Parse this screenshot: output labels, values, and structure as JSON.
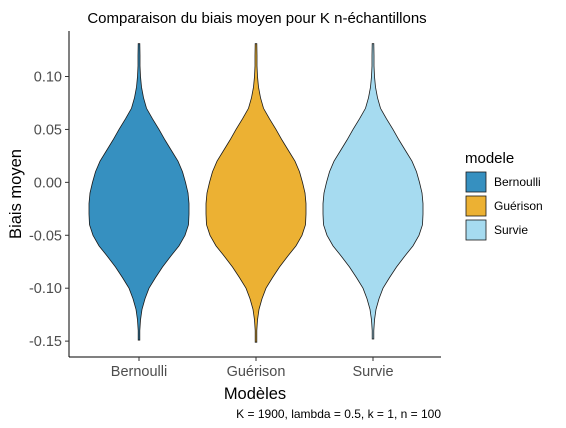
{
  "chart_data": {
    "type": "violin",
    "title": "Comparaison du biais moyen pour K n-échantillons",
    "xlabel": "Modèles",
    "ylabel": "Biais moyen",
    "caption": "K = 1900, lambda = 0.5, k = 1, n = 100",
    "ylim": [
      -0.165,
      0.143
    ],
    "yticks": [
      "-0.15",
      "-0.10",
      "-0.05",
      "0.00",
      "0.05",
      "0.10"
    ],
    "yticks_values": [
      -0.15,
      -0.1,
      -0.05,
      0.0,
      0.05,
      0.1
    ],
    "categories": [
      "Bernoulli",
      "Guérison",
      "Survie"
    ],
    "grid": false,
    "legend": {
      "title": "modele",
      "position": "right",
      "entries": [
        "Bernoulli",
        "Guérison",
        "Survie"
      ]
    },
    "series": [
      {
        "name": "Bernoulli",
        "color": "#3690c0",
        "min": -0.149,
        "max": 0.131,
        "density": [
          [
            -0.149,
            0.0
          ],
          [
            -0.14,
            0.01
          ],
          [
            -0.13,
            0.03
          ],
          [
            -0.12,
            0.06
          ],
          [
            -0.11,
            0.12
          ],
          [
            -0.1,
            0.2
          ],
          [
            -0.09,
            0.33
          ],
          [
            -0.08,
            0.47
          ],
          [
            -0.07,
            0.63
          ],
          [
            -0.06,
            0.8
          ],
          [
            -0.05,
            0.92
          ],
          [
            -0.04,
            0.99
          ],
          [
            -0.03,
            1.0
          ],
          [
            -0.02,
            1.0
          ],
          [
            -0.01,
            0.98
          ],
          [
            0.0,
            0.93
          ],
          [
            0.01,
            0.87
          ],
          [
            0.02,
            0.78
          ],
          [
            0.03,
            0.65
          ],
          [
            0.04,
            0.52
          ],
          [
            0.05,
            0.4
          ],
          [
            0.06,
            0.27
          ],
          [
            0.07,
            0.15
          ],
          [
            0.08,
            0.09
          ],
          [
            0.09,
            0.05
          ],
          [
            0.1,
            0.03
          ],
          [
            0.11,
            0.02
          ],
          [
            0.12,
            0.02
          ],
          [
            0.131,
            0.01
          ]
        ]
      },
      {
        "name": "Guérison",
        "color": "#ecb133",
        "min": -0.151,
        "max": 0.131,
        "density": [
          [
            -0.151,
            0.0
          ],
          [
            -0.14,
            0.01
          ],
          [
            -0.13,
            0.03
          ],
          [
            -0.12,
            0.06
          ],
          [
            -0.11,
            0.12
          ],
          [
            -0.1,
            0.2
          ],
          [
            -0.09,
            0.33
          ],
          [
            -0.08,
            0.47
          ],
          [
            -0.07,
            0.63
          ],
          [
            -0.06,
            0.8
          ],
          [
            -0.05,
            0.92
          ],
          [
            -0.04,
            0.99
          ],
          [
            -0.03,
            1.0
          ],
          [
            -0.02,
            1.0
          ],
          [
            -0.01,
            0.98
          ],
          [
            0.0,
            0.93
          ],
          [
            0.01,
            0.87
          ],
          [
            0.02,
            0.78
          ],
          [
            0.03,
            0.65
          ],
          [
            0.04,
            0.52
          ],
          [
            0.05,
            0.4
          ],
          [
            0.06,
            0.27
          ],
          [
            0.07,
            0.15
          ],
          [
            0.08,
            0.09
          ],
          [
            0.09,
            0.05
          ],
          [
            0.1,
            0.03
          ],
          [
            0.11,
            0.02
          ],
          [
            0.12,
            0.02
          ],
          [
            0.131,
            0.01
          ]
        ]
      },
      {
        "name": "Survie",
        "color": "#a6dbf0",
        "min": -0.148,
        "max": 0.131,
        "density": [
          [
            -0.148,
            0.0
          ],
          [
            -0.14,
            0.01
          ],
          [
            -0.13,
            0.03
          ],
          [
            -0.12,
            0.06
          ],
          [
            -0.11,
            0.12
          ],
          [
            -0.1,
            0.2
          ],
          [
            -0.09,
            0.33
          ],
          [
            -0.08,
            0.47
          ],
          [
            -0.07,
            0.63
          ],
          [
            -0.06,
            0.8
          ],
          [
            -0.05,
            0.92
          ],
          [
            -0.04,
            0.99
          ],
          [
            -0.03,
            1.0
          ],
          [
            -0.02,
            1.0
          ],
          [
            -0.01,
            0.98
          ],
          [
            0.0,
            0.93
          ],
          [
            0.01,
            0.87
          ],
          [
            0.02,
            0.78
          ],
          [
            0.03,
            0.65
          ],
          [
            0.04,
            0.52
          ],
          [
            0.05,
            0.4
          ],
          [
            0.06,
            0.27
          ],
          [
            0.07,
            0.15
          ],
          [
            0.08,
            0.09
          ],
          [
            0.09,
            0.05
          ],
          [
            0.1,
            0.03
          ],
          [
            0.11,
            0.02
          ],
          [
            0.12,
            0.02
          ],
          [
            0.131,
            0.01
          ]
        ]
      }
    ]
  }
}
